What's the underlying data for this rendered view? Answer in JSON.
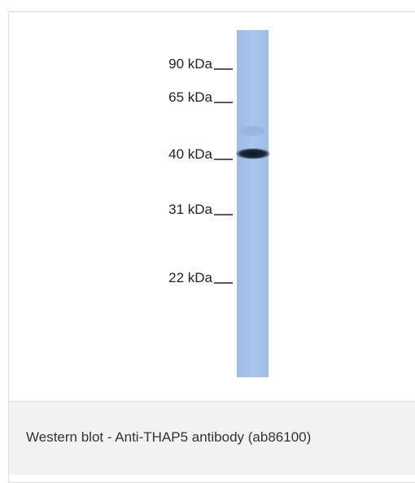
{
  "markers": [
    {
      "label": "90 kDa"
    },
    {
      "label": "65 kDa"
    },
    {
      "label": "40 kDa"
    },
    {
      "label": "31 kDa"
    },
    {
      "label": "22 kDa"
    }
  ],
  "caption": "Western blot - Anti-THAP5 antibody (ab86100)"
}
